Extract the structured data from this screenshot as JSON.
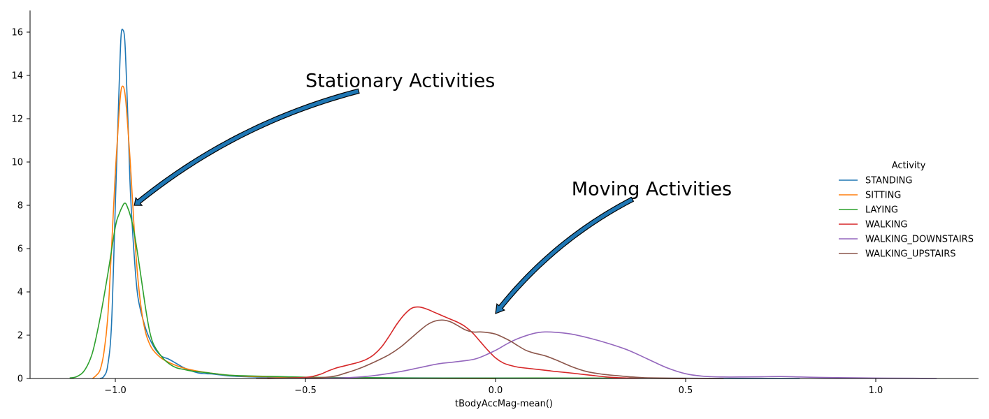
{
  "chart_data": {
    "type": "line",
    "title": "",
    "xlabel": "tBodyAccMag-mean()",
    "ylabel": "",
    "xlim": [
      -1.2,
      1.3
    ],
    "ylim": [
      0,
      17
    ],
    "xticks": [
      -1.0,
      -0.5,
      0.0,
      0.5,
      1.0
    ],
    "xtick_labels": [
      "−1.0",
      "−0.5",
      "0.0",
      "0.5",
      "1.0"
    ],
    "yticks": [
      0,
      2,
      4,
      6,
      8,
      10,
      12,
      14,
      16
    ],
    "ytick_labels": [
      "0",
      "2",
      "4",
      "6",
      "8",
      "10",
      "12",
      "14",
      "16"
    ],
    "grid": false,
    "legend": {
      "title": "Activity",
      "position": "right"
    },
    "series": [
      {
        "name": "STANDING",
        "color": "#1f77b4",
        "points": [
          [
            -1.04,
            0
          ],
          [
            -1.03,
            0.1
          ],
          [
            -1.02,
            0.6
          ],
          [
            -1.01,
            2.5
          ],
          [
            -1.0,
            8.0
          ],
          [
            -0.99,
            13.5
          ],
          [
            -0.985,
            15.8
          ],
          [
            -0.98,
            16.1
          ],
          [
            -0.975,
            15.6
          ],
          [
            -0.97,
            13.5
          ],
          [
            -0.965,
            11.0
          ],
          [
            -0.96,
            8.5
          ],
          [
            -0.95,
            5.6
          ],
          [
            -0.94,
            3.7
          ],
          [
            -0.92,
            2.3
          ],
          [
            -0.9,
            1.5
          ],
          [
            -0.88,
            1.05
          ],
          [
            -0.86,
            0.9
          ],
          [
            -0.84,
            0.7
          ],
          [
            -0.82,
            0.5
          ],
          [
            -0.8,
            0.35
          ],
          [
            -0.78,
            0.25
          ],
          [
            -0.76,
            0.22
          ],
          [
            -0.74,
            0.2
          ],
          [
            -0.7,
            0.12
          ],
          [
            -0.65,
            0.08
          ],
          [
            -0.6,
            0.06
          ],
          [
            -0.5,
            0.04
          ],
          [
            -0.3,
            0.03
          ],
          [
            0.0,
            0.02
          ],
          [
            0.3,
            0.01
          ],
          [
            0.5,
            0.01
          ],
          [
            0.8,
            0.0
          ]
        ]
      },
      {
        "name": "SITTING",
        "color": "#ff7f0e",
        "points": [
          [
            -1.06,
            0
          ],
          [
            -1.05,
            0.15
          ],
          [
            -1.04,
            0.4
          ],
          [
            -1.03,
            1.2
          ],
          [
            -1.02,
            2.8
          ],
          [
            -1.01,
            6.0
          ],
          [
            -1.0,
            9.5
          ],
          [
            -0.99,
            12.3
          ],
          [
            -0.985,
            13.3
          ],
          [
            -0.98,
            13.5
          ],
          [
            -0.975,
            13.2
          ],
          [
            -0.97,
            12.3
          ],
          [
            -0.96,
            9.8
          ],
          [
            -0.95,
            6.8
          ],
          [
            -0.94,
            4.5
          ],
          [
            -0.93,
            3.0
          ],
          [
            -0.92,
            2.1
          ],
          [
            -0.91,
            1.6
          ],
          [
            -0.9,
            1.3
          ],
          [
            -0.88,
            0.95
          ],
          [
            -0.86,
            0.75
          ],
          [
            -0.84,
            0.6
          ],
          [
            -0.82,
            0.48
          ],
          [
            -0.8,
            0.4
          ],
          [
            -0.78,
            0.33
          ],
          [
            -0.75,
            0.25
          ],
          [
            -0.7,
            0.15
          ],
          [
            -0.65,
            0.1
          ],
          [
            -0.6,
            0.08
          ],
          [
            -0.5,
            0.04
          ],
          [
            -0.4,
            0.02
          ],
          [
            -0.2,
            0.01
          ],
          [
            0.0,
            0.0
          ]
        ]
      },
      {
        "name": "LAYING",
        "color": "#2ca02c",
        "points": [
          [
            -1.12,
            0.02
          ],
          [
            -1.1,
            0.1
          ],
          [
            -1.08,
            0.4
          ],
          [
            -1.06,
            1.2
          ],
          [
            -1.04,
            2.8
          ],
          [
            -1.02,
            4.8
          ],
          [
            -1.0,
            7.0
          ],
          [
            -0.99,
            7.6
          ],
          [
            -0.98,
            8.0
          ],
          [
            -0.975,
            8.1
          ],
          [
            -0.97,
            8.0
          ],
          [
            -0.96,
            7.5
          ],
          [
            -0.95,
            6.7
          ],
          [
            -0.94,
            5.6
          ],
          [
            -0.93,
            4.4
          ],
          [
            -0.92,
            3.2
          ],
          [
            -0.91,
            2.2
          ],
          [
            -0.9,
            1.6
          ],
          [
            -0.88,
            1.05
          ],
          [
            -0.86,
            0.7
          ],
          [
            -0.84,
            0.5
          ],
          [
            -0.82,
            0.42
          ],
          [
            -0.8,
            0.35
          ],
          [
            -0.75,
            0.25
          ],
          [
            -0.7,
            0.15
          ],
          [
            -0.65,
            0.12
          ],
          [
            -0.6,
            0.1
          ],
          [
            -0.55,
            0.08
          ],
          [
            -0.5,
            0.06
          ],
          [
            -0.4,
            0.04
          ],
          [
            -0.3,
            0.03
          ],
          [
            -0.2,
            0.02
          ],
          [
            0.0,
            0.02
          ],
          [
            0.2,
            0.02
          ],
          [
            0.4,
            0.01
          ],
          [
            0.5,
            0.0
          ]
        ]
      },
      {
        "name": "WALKING",
        "color": "#d62728",
        "points": [
          [
            -0.6,
            0
          ],
          [
            -0.55,
            0.02
          ],
          [
            -0.5,
            0.05
          ],
          [
            -0.48,
            0.1
          ],
          [
            -0.46,
            0.2
          ],
          [
            -0.44,
            0.35
          ],
          [
            -0.42,
            0.48
          ],
          [
            -0.4,
            0.57
          ],
          [
            -0.38,
            0.66
          ],
          [
            -0.36,
            0.75
          ],
          [
            -0.34,
            0.88
          ],
          [
            -0.32,
            1.1
          ],
          [
            -0.3,
            1.45
          ],
          [
            -0.28,
            1.95
          ],
          [
            -0.26,
            2.5
          ],
          [
            -0.24,
            2.95
          ],
          [
            -0.22,
            3.25
          ],
          [
            -0.2,
            3.3
          ],
          [
            -0.18,
            3.2
          ],
          [
            -0.16,
            3.05
          ],
          [
            -0.14,
            2.9
          ],
          [
            -0.12,
            2.75
          ],
          [
            -0.1,
            2.6
          ],
          [
            -0.08,
            2.4
          ],
          [
            -0.06,
            2.1
          ],
          [
            -0.04,
            1.7
          ],
          [
            -0.02,
            1.3
          ],
          [
            0.0,
            0.95
          ],
          [
            0.02,
            0.72
          ],
          [
            0.04,
            0.6
          ],
          [
            0.06,
            0.52
          ],
          [
            0.08,
            0.48
          ],
          [
            0.1,
            0.44
          ],
          [
            0.12,
            0.4
          ],
          [
            0.14,
            0.36
          ],
          [
            0.16,
            0.32
          ],
          [
            0.2,
            0.25
          ],
          [
            0.25,
            0.15
          ],
          [
            0.3,
            0.06
          ],
          [
            0.35,
            0.02
          ],
          [
            0.4,
            0.01
          ],
          [
            0.5,
            0.0
          ]
        ]
      },
      {
        "name": "WALKING_DOWNSTAIRS",
        "color": "#9467bd",
        "points": [
          [
            -0.5,
            0
          ],
          [
            -0.45,
            0.01
          ],
          [
            -0.4,
            0.03
          ],
          [
            -0.35,
            0.08
          ],
          [
            -0.3,
            0.18
          ],
          [
            -0.25,
            0.32
          ],
          [
            -0.2,
            0.5
          ],
          [
            -0.15,
            0.68
          ],
          [
            -0.1,
            0.78
          ],
          [
            -0.05,
            0.92
          ],
          [
            0.0,
            1.3
          ],
          [
            0.03,
            1.6
          ],
          [
            0.06,
            1.85
          ],
          [
            0.1,
            2.08
          ],
          [
            0.13,
            2.15
          ],
          [
            0.16,
            2.13
          ],
          [
            0.2,
            2.05
          ],
          [
            0.25,
            1.85
          ],
          [
            0.3,
            1.6
          ],
          [
            0.35,
            1.3
          ],
          [
            0.4,
            0.9
          ],
          [
            0.45,
            0.5
          ],
          [
            0.5,
            0.22
          ],
          [
            0.55,
            0.1
          ],
          [
            0.6,
            0.07
          ],
          [
            0.65,
            0.07
          ],
          [
            0.7,
            0.08
          ],
          [
            0.75,
            0.09
          ],
          [
            0.8,
            0.07
          ],
          [
            0.85,
            0.05
          ],
          [
            0.9,
            0.04
          ],
          [
            1.0,
            0.02
          ],
          [
            1.1,
            0.01
          ],
          [
            1.16,
            0.0
          ]
        ]
      },
      {
        "name": "WALKING_UPSTAIRS",
        "color": "#8c564b",
        "points": [
          [
            -0.63,
            0
          ],
          [
            -0.55,
            0.01
          ],
          [
            -0.5,
            0.02
          ],
          [
            -0.45,
            0.05
          ],
          [
            -0.42,
            0.12
          ],
          [
            -0.4,
            0.22
          ],
          [
            -0.36,
            0.45
          ],
          [
            -0.32,
            0.75
          ],
          [
            -0.28,
            1.1
          ],
          [
            -0.25,
            1.45
          ],
          [
            -0.22,
            1.9
          ],
          [
            -0.2,
            2.2
          ],
          [
            -0.18,
            2.48
          ],
          [
            -0.16,
            2.65
          ],
          [
            -0.14,
            2.7
          ],
          [
            -0.12,
            2.63
          ],
          [
            -0.1,
            2.45
          ],
          [
            -0.08,
            2.25
          ],
          [
            -0.06,
            2.15
          ],
          [
            -0.04,
            2.15
          ],
          [
            -0.02,
            2.12
          ],
          [
            0.0,
            2.05
          ],
          [
            0.02,
            1.9
          ],
          [
            0.04,
            1.72
          ],
          [
            0.06,
            1.5
          ],
          [
            0.08,
            1.3
          ],
          [
            0.1,
            1.18
          ],
          [
            0.13,
            1.05
          ],
          [
            0.16,
            0.85
          ],
          [
            0.2,
            0.55
          ],
          [
            0.24,
            0.32
          ],
          [
            0.28,
            0.2
          ],
          [
            0.32,
            0.13
          ],
          [
            0.36,
            0.07
          ],
          [
            0.4,
            0.03
          ],
          [
            0.5,
            0.01
          ],
          [
            0.6,
            0.0
          ]
        ]
      }
    ],
    "annotations": [
      {
        "text": "Stationary Activities",
        "text_x": -0.5,
        "text_y": 13.6,
        "arrow_from": [
          -0.36,
          13.6
        ],
        "arrow_to": [
          -0.95,
          8.0
        ]
      },
      {
        "text": "Moving Activities",
        "text_x": 0.2,
        "text_y": 8.6,
        "arrow_from": [
          0.36,
          8.6
        ],
        "arrow_to": [
          0.0,
          3.0
        ]
      }
    ]
  }
}
